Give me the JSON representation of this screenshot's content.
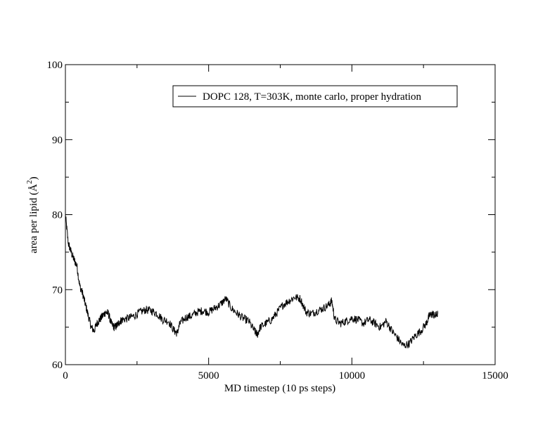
{
  "chart_data": {
    "type": "line",
    "title": "",
    "xlabel": "MD timestep (10 ps steps)",
    "ylabel_main": "area per lipid (Å",
    "ylabel_sup": "2",
    "ylabel_close": ")",
    "xlim": [
      0,
      15000
    ],
    "ylim": [
      60,
      100
    ],
    "x_ticks": [
      0,
      5000,
      10000,
      15000
    ],
    "x_tick_labels": [
      "0",
      "5000",
      "10000",
      "15000"
    ],
    "y_ticks": [
      60,
      70,
      80,
      90,
      100
    ],
    "y_tick_labels": [
      "60",
      "70",
      "80",
      "90",
      "100"
    ],
    "grid": false,
    "legend_position": "top-right",
    "line_color": "#000000",
    "series": [
      {
        "name": "DOPC 128, T=303K, monte carlo, proper hydration",
        "x": [
          0,
          100,
          200,
          300,
          400,
          500,
          600,
          700,
          800,
          900,
          1000,
          1100,
          1200,
          1300,
          1400,
          1500,
          1600,
          1700,
          1800,
          1900,
          2000,
          2200,
          2400,
          2600,
          2800,
          3000,
          3200,
          3400,
          3600,
          3800,
          3900,
          4000,
          4200,
          4400,
          4600,
          4800,
          5000,
          5200,
          5400,
          5600,
          5800,
          6000,
          6200,
          6400,
          6600,
          6700,
          6800,
          7000,
          7200,
          7400,
          7600,
          7800,
          8000,
          8200,
          8400,
          8600,
          8800,
          9000,
          9200,
          9300,
          9400,
          9600,
          9800,
          10000,
          10200,
          10400,
          10600,
          10800,
          11000,
          11200,
          11400,
          11600,
          11800,
          12000,
          12200,
          12400,
          12600,
          12700,
          12800,
          12900,
          13000
        ],
        "values": [
          80.0,
          76.2,
          75.0,
          74.0,
          73.2,
          70.5,
          69.5,
          68.0,
          66.5,
          65.0,
          64.5,
          65.5,
          66.0,
          66.5,
          67.0,
          66.8,
          65.5,
          65.0,
          65.2,
          65.8,
          66.0,
          66.2,
          66.5,
          67.0,
          67.3,
          67.2,
          66.8,
          66.0,
          65.8,
          64.5,
          64.2,
          65.5,
          66.3,
          66.5,
          67.0,
          67.2,
          67.0,
          67.5,
          68.0,
          68.8,
          67.5,
          66.8,
          66.2,
          65.8,
          64.5,
          64.0,
          65.0,
          65.5,
          66.0,
          67.0,
          68.0,
          68.5,
          69.0,
          68.8,
          67.0,
          66.8,
          67.2,
          67.5,
          68.0,
          68.5,
          66.0,
          65.5,
          65.8,
          66.2,
          66.0,
          65.5,
          66.0,
          65.5,
          65.0,
          65.8,
          64.5,
          63.5,
          62.5,
          62.8,
          63.8,
          64.5,
          65.5,
          66.5,
          66.8,
          66.5,
          66.8
        ]
      }
    ]
  }
}
